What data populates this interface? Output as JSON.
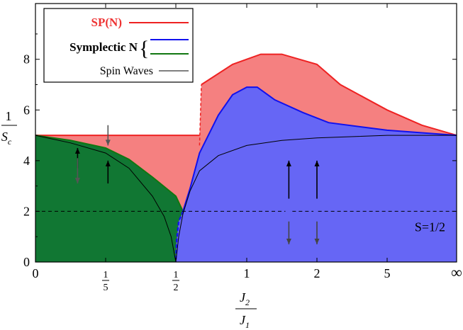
{
  "chart_data": {
    "type": "area",
    "title": "",
    "ylabel": {
      "numerator": "1",
      "symbol": "S",
      "subscript": "c"
    },
    "xlabel": {
      "numerator_symbol": "J",
      "numerator_subscript": "2",
      "denominator_symbol": "J",
      "denominator_subscript": "1"
    },
    "ylim": [
      0,
      10.2
    ],
    "y_ticks": [
      "0",
      "2",
      "4",
      "6",
      "8"
    ],
    "x_ticks": [
      {
        "position": 0,
        "label": "0",
        "kind": "plain"
      },
      {
        "position": 0.2,
        "num": "1",
        "den": "5",
        "kind": "fraction"
      },
      {
        "position": 0.5,
        "num": "1",
        "den": "2",
        "kind": "fraction"
      },
      {
        "position": 1,
        "label": "1",
        "kind": "plain"
      },
      {
        "position": 2,
        "label": "2",
        "kind": "plain"
      },
      {
        "position": 5,
        "label": "5",
        "kind": "plain"
      },
      {
        "position": "inf",
        "label": "∞",
        "kind": "plain"
      }
    ],
    "x_scale": "compactified",
    "legend": {
      "placement": "top-left",
      "entries": [
        {
          "label": "SP(N)",
          "color": "#ee2222",
          "label_color": "#ee3333",
          "bold": true
        },
        {
          "label": "Symplectic N",
          "colors": [
            "#1111ee",
            "#117711"
          ],
          "bold": true,
          "brace": "{"
        },
        {
          "label": "Spin Waves",
          "color": "#000000",
          "bold": false
        }
      ]
    },
    "series": [
      {
        "name": "SP(N)",
        "fill": "#f58080",
        "stroke": "#ee2222",
        "upper": [
          [
            0,
            5.0
          ],
          [
            0.2,
            5.0
          ],
          [
            0.5,
            5.0
          ],
          [
            0.667,
            5.0
          ],
          [
            0.68,
            7.0
          ],
          [
            0.9,
            7.8
          ],
          [
            1.0,
            8.0
          ],
          [
            1.2,
            8.2
          ],
          [
            1.5,
            8.2
          ],
          [
            2.0,
            7.8
          ],
          [
            3.0,
            7.0
          ],
          [
            5.0,
            6.0
          ],
          [
            10,
            5.4
          ],
          [
            "inf",
            5.0
          ]
        ]
      },
      {
        "name": "Symplectic N (Néel region)",
        "fill": "#117733",
        "stroke": "#117711",
        "upper": [
          [
            0,
            5.0
          ],
          [
            0.1,
            4.8
          ],
          [
            0.2,
            4.5
          ],
          [
            0.3,
            4.05
          ],
          [
            0.4,
            3.35
          ],
          [
            0.5,
            2.6
          ],
          [
            0.55,
            2.0
          ]
        ],
        "lower": [
          [
            0.55,
            2.0
          ],
          [
            0.54,
            1.85
          ],
          [
            0.52,
            1.6
          ],
          [
            0.505,
            0.8
          ],
          [
            0.5,
            0.0
          ]
        ]
      },
      {
        "name": "Symplectic N (collinear region)",
        "fill": "#6666f5",
        "stroke": "#1111ee",
        "upper": [
          [
            0.5,
            0.0
          ],
          [
            0.505,
            0.8
          ],
          [
            0.52,
            1.6
          ],
          [
            0.55,
            2.0
          ],
          [
            0.6,
            2.9
          ],
          [
            0.667,
            4.3
          ],
          [
            0.8,
            5.8
          ],
          [
            0.9,
            6.6
          ],
          [
            1.0,
            6.9
          ],
          [
            1.15,
            6.9
          ],
          [
            1.4,
            6.4
          ],
          [
            1.8,
            5.9
          ],
          [
            2.5,
            5.5
          ],
          [
            5.0,
            5.2
          ],
          [
            10,
            5.1
          ],
          [
            "inf",
            5.0
          ]
        ]
      },
      {
        "name": "Spin Waves",
        "stroke": "#000000",
        "fill": "none",
        "branch_left": [
          [
            0,
            5.0
          ],
          [
            0.1,
            4.7
          ],
          [
            0.2,
            4.3
          ],
          [
            0.3,
            3.7
          ],
          [
            0.4,
            2.6
          ],
          [
            0.45,
            1.8
          ],
          [
            0.48,
            1.0
          ],
          [
            0.5,
            0.0
          ]
        ],
        "branch_right": [
          [
            0.5,
            0.0
          ],
          [
            0.52,
            1.0
          ],
          [
            0.55,
            1.9
          ],
          [
            0.6,
            2.8
          ],
          [
            0.667,
            3.6
          ],
          [
            0.8,
            4.2
          ],
          [
            1.0,
            4.6
          ],
          [
            1.5,
            4.8
          ],
          [
            2.0,
            4.9
          ],
          [
            5.0,
            5.0
          ],
          [
            "inf",
            5.0
          ]
        ]
      }
    ],
    "reference_lines": [
      {
        "y": 2,
        "style": "dashed",
        "label": "S=1/2"
      }
    ],
    "spin_arrows": [
      {
        "region": "neel",
        "x": 0.12,
        "dirs": [
          "up",
          "down"
        ]
      },
      {
        "region": "neel",
        "x": 0.21,
        "dirs": [
          "down",
          "up"
        ]
      },
      {
        "region": "collinear",
        "x": 1.6,
        "dirs": [
          "up",
          "down"
        ]
      },
      {
        "region": "collinear",
        "x": 2.0,
        "dirs": [
          "up",
          "down"
        ]
      }
    ]
  },
  "colors": {
    "axis": "#000000",
    "spn_fill": "#f58080",
    "neel_fill": "#117733",
    "collinear_fill": "#6666f5"
  }
}
